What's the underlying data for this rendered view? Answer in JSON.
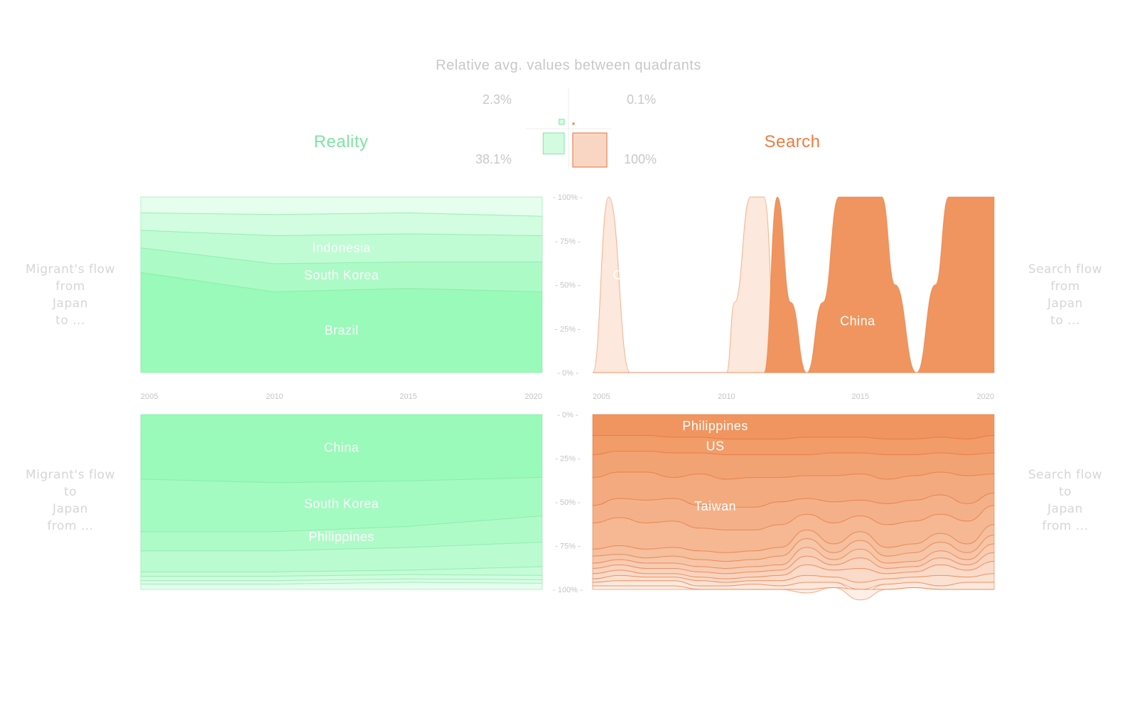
{
  "title": "Relative avg. values between quadrants",
  "colors": {
    "reality": "#99fab9",
    "reality_line": "#82e6a4",
    "reality_text": "#7fe3a3",
    "search": "#f0955f",
    "search_line": "#e86f33",
    "search_text": "#eb7d41",
    "muted": "#cfcfcf"
  },
  "headers": {
    "reality": "Reality",
    "search": "Search"
  },
  "quadrant_values": {
    "top_left": "2.3%",
    "top_right": "0.1%",
    "bottom_left": "38.1%",
    "bottom_right": "100%"
  },
  "side_labels": {
    "top_left": [
      "Migrant's flow",
      "from",
      "Japan",
      "to ..."
    ],
    "bottom_left": [
      "Migrant's flow",
      "to",
      "Japan",
      "from ..."
    ],
    "top_right": [
      "Search flow",
      "from",
      "Japan",
      "to ..."
    ],
    "bottom_right": [
      "Search flow",
      "to",
      "Japan",
      "from ..."
    ]
  },
  "chart_data": [
    {
      "type": "area",
      "name": "reality-outflow",
      "stacked": "percent",
      "x": [
        2005,
        2010,
        2015,
        2020
      ],
      "series": [
        {
          "name": "Brazil",
          "values": [
            57,
            46,
            48,
            46
          ]
        },
        {
          "name": "South Korea",
          "values": [
            14,
            16,
            15,
            17
          ]
        },
        {
          "name": "Indonesia",
          "values": [
            10,
            16,
            16,
            15
          ]
        },
        {
          "name": "",
          "values": [
            10,
            12,
            12,
            11
          ]
        },
        {
          "name": "",
          "values": [
            9,
            10,
            9,
            11
          ]
        }
      ],
      "xticks": [
        "2005",
        "2010",
        "2015",
        "2020"
      ],
      "ylim": [
        0,
        100
      ],
      "yticks": [
        "100%",
        "75%",
        "50%",
        "25%",
        "0%"
      ],
      "ylabel_side": "right"
    },
    {
      "type": "area",
      "name": "search-outflow",
      "stacked": "percent",
      "x": [
        2005,
        2005.6,
        2006.4,
        2007,
        2010,
        2010.3,
        2010.9,
        2011.4,
        2011.9,
        2012.4,
        2013,
        2013.6,
        2014.2,
        2015.8,
        2016.3,
        2017.1,
        2017.8,
        2018.3,
        2020
      ],
      "series": [
        {
          "name": "China",
          "values": [
            0,
            0,
            0,
            0,
            0,
            0,
            0,
            0,
            100,
            40,
            0,
            40,
            100,
            100,
            50,
            0,
            50,
            100,
            100
          ]
        },
        {
          "name": "Co",
          "values": [
            0,
            100,
            0,
            0,
            0,
            40,
            100,
            100,
            0,
            0,
            0,
            0,
            0,
            0,
            0,
            0,
            0,
            0,
            0
          ]
        }
      ],
      "xticks": [
        "2005",
        "2010",
        "2015",
        "2020"
      ],
      "ylim": [
        0,
        100
      ]
    },
    {
      "type": "area",
      "name": "reality-inflow",
      "stacked": "percent",
      "x": [
        2005,
        2010,
        2015,
        2020
      ],
      "series": [
        {
          "name": "China",
          "values": [
            37,
            39,
            38,
            36
          ]
        },
        {
          "name": "South Korea",
          "values": [
            30,
            28,
            26,
            22
          ]
        },
        {
          "name": "Philippines",
          "values": [
            11,
            11,
            12,
            15
          ]
        },
        {
          "name": "",
          "values": [
            12,
            12,
            13,
            14
          ]
        },
        {
          "name": "",
          "values": [
            2.5,
            2.5,
            2.5,
            5
          ]
        },
        {
          "name": "",
          "values": [
            2.5,
            2.5,
            2.5,
            2.5
          ]
        },
        {
          "name": "",
          "values": [
            2,
            2,
            2,
            2
          ]
        },
        {
          "name": "",
          "values": [
            3,
            3,
            4,
            3.5
          ]
        }
      ],
      "ylim": [
        0,
        100
      ],
      "yticks": [
        "0%",
        "25%",
        "50%",
        "75%",
        "100%"
      ]
    },
    {
      "type": "area",
      "name": "search-inflow",
      "stacked": "percent",
      "x": [
        2005,
        2006,
        2007,
        2008,
        2009,
        2010,
        2011,
        2012,
        2013,
        2014,
        2015,
        2016,
        2017,
        2018,
        2019,
        2020
      ],
      "series": [
        {
          "name": "Philippines",
          "values": [
            12,
            12,
            12,
            13,
            13,
            14,
            14,
            14,
            13,
            13,
            13,
            14,
            14,
            13,
            14,
            12
          ]
        },
        {
          "name": "US",
          "values": [
            11,
            9,
            9,
            9,
            9,
            9,
            9,
            9,
            10,
            9,
            9,
            9,
            9,
            9,
            9,
            10
          ]
        },
        {
          "name": "",
          "values": [
            13,
            12,
            12,
            14,
            12,
            14,
            13,
            13,
            12,
            13,
            12,
            14,
            12,
            11,
            12,
            12
          ]
        },
        {
          "name": "",
          "values": [
            16,
            15,
            16,
            12,
            18,
            16,
            17,
            14,
            13,
            15,
            15,
            14,
            14,
            13,
            16,
            11
          ]
        },
        {
          "name": "Taiwan",
          "values": [
            10,
            11,
            13,
            13,
            13,
            13,
            13,
            13,
            9,
            12,
            9,
            12,
            12,
            11,
            10,
            7
          ]
        },
        {
          "name": "",
          "values": [
            15,
            16,
            15,
            15,
            13,
            13,
            12,
            13,
            9,
            12,
            9,
            13,
            13,
            11,
            13,
            11
          ]
        },
        {
          "name": "",
          "values": [
            4,
            5,
            5,
            5,
            5,
            5,
            5,
            5,
            5,
            5,
            5,
            5,
            5,
            5,
            5,
            6
          ]
        },
        {
          "name": "",
          "values": [
            4,
            3,
            3,
            4,
            4,
            4,
            4,
            5,
            5,
            4,
            5,
            4,
            5,
            5,
            4,
            5
          ]
        },
        {
          "name": "",
          "values": [
            3,
            3,
            3,
            3,
            3,
            3,
            3,
            3,
            5,
            3,
            5,
            3,
            3,
            4,
            3,
            5
          ]
        },
        {
          "name": "",
          "values": [
            3,
            3,
            3,
            3,
            3,
            3,
            3,
            3,
            5,
            3,
            6,
            3,
            3,
            4,
            3,
            5
          ]
        },
        {
          "name": "",
          "values": [
            3,
            3,
            2,
            2,
            2,
            2,
            2,
            3,
            6,
            4,
            8,
            3,
            3,
            6,
            4,
            7
          ]
        },
        {
          "name": "",
          "values": [
            2,
            3,
            2,
            2,
            3,
            2,
            2,
            3,
            4,
            3,
            6,
            3,
            3,
            6,
            3,
            5
          ]
        },
        {
          "name": "",
          "values": [
            2,
            3,
            3,
            3,
            2,
            2,
            3,
            2,
            6,
            3,
            4,
            3,
            3,
            2,
            4,
            4
          ]
        },
        {
          "name": "",
          "values": [
            2,
            2,
            2,
            2,
            0,
            0,
            0,
            0,
            0,
            0,
            0,
            0,
            0,
            0,
            0,
            0
          ]
        }
      ],
      "ylim": [
        0,
        100
      ]
    }
  ]
}
